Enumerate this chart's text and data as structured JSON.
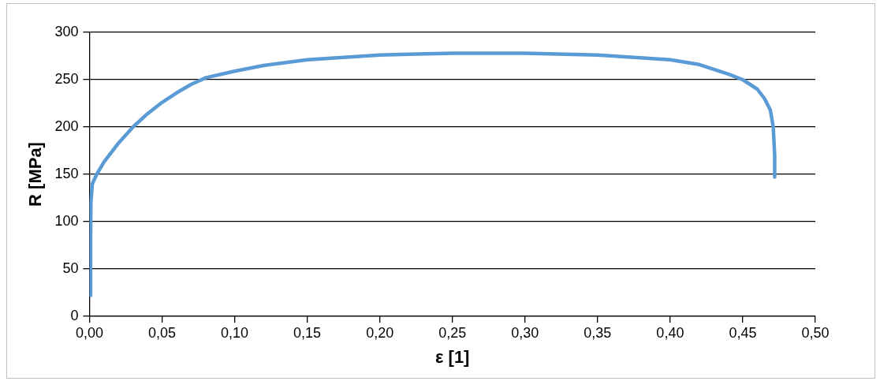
{
  "chart_data": {
    "type": "line",
    "xlabel": "ε [1]",
    "ylabel": "R [MPa]",
    "x": [
      0.0005,
      0.0008,
      0.001,
      0.002,
      0.005,
      0.01,
      0.02,
      0.03,
      0.04,
      0.05,
      0.06,
      0.07,
      0.08,
      0.1,
      0.12,
      0.15,
      0.2,
      0.25,
      0.3,
      0.35,
      0.4,
      0.42,
      0.44,
      0.45,
      0.46,
      0.465,
      0.469,
      0.471,
      0.472,
      0.472
    ],
    "series": [
      {
        "color": "#5b9bd5",
        "values": [
          22,
          80,
          120,
          140,
          150,
          163,
          183,
          200,
          214,
          226,
          236,
          245,
          252,
          259,
          265,
          271,
          276,
          278,
          278,
          276,
          271,
          266,
          256,
          250,
          240,
          230,
          218,
          200,
          170,
          147
        ]
      }
    ],
    "xlim": [
      0,
      0.5
    ],
    "xticks": [
      {
        "value": 0,
        "label": "0,00"
      },
      {
        "value": 0.05,
        "label": "0,05"
      },
      {
        "value": 0.1,
        "label": "0,10"
      },
      {
        "value": 0.15,
        "label": "0,15"
      },
      {
        "value": 0.2,
        "label": "0,20"
      },
      {
        "value": 0.25,
        "label": "0,25"
      },
      {
        "value": 0.3,
        "label": "0,30"
      },
      {
        "value": 0.35,
        "label": "0,35"
      },
      {
        "value": 0.4,
        "label": "0,40"
      },
      {
        "value": 0.45,
        "label": "0,45"
      },
      {
        "value": 0.5,
        "label": "0,50"
      }
    ],
    "ylim": [
      0,
      300
    ],
    "yticks": [
      0,
      50,
      100,
      150,
      200,
      250,
      300
    ],
    "grid": "y",
    "legend": false,
    "marker": "none",
    "line_style": "solid"
  }
}
